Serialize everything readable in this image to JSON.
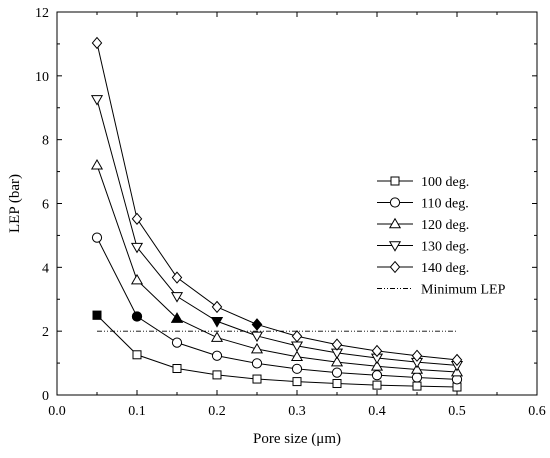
{
  "chart_data": {
    "type": "line",
    "xlabel": "Pore size (μm)",
    "ylabel": "LEP (bar)",
    "xlim": [
      0.0,
      0.6
    ],
    "ylim": [
      0,
      12
    ],
    "x_ticks": [
      "0.0",
      "0.1",
      "0.2",
      "0.3",
      "0.4",
      "0.5",
      "0.6"
    ],
    "y_ticks": [
      "0",
      "2",
      "4",
      "6",
      "8",
      "10",
      "12"
    ],
    "x": [
      0.05,
      0.1,
      0.15,
      0.2,
      0.25,
      0.3,
      0.35,
      0.4,
      0.45,
      0.5
    ],
    "grid": false,
    "legend_position": "right",
    "series": [
      {
        "name": "100 deg.",
        "marker": "square",
        "values": [
          2.5,
          1.26,
          0.83,
          0.63,
          0.5,
          0.42,
          0.36,
          0.31,
          0.28,
          0.25
        ]
      },
      {
        "name": "110 deg.",
        "marker": "circle",
        "values": [
          4.93,
          2.46,
          1.64,
          1.23,
          0.99,
          0.82,
          0.7,
          0.62,
          0.55,
          0.49
        ]
      },
      {
        "name": "120 deg.",
        "marker": "triangle-up",
        "values": [
          7.2,
          3.6,
          2.4,
          1.8,
          1.44,
          1.2,
          1.03,
          0.9,
          0.8,
          0.72
        ]
      },
      {
        "name": "130 deg.",
        "marker": "triangle-down",
        "values": [
          9.26,
          4.63,
          3.09,
          2.31,
          1.85,
          1.54,
          1.32,
          1.16,
          1.03,
          0.93
        ]
      },
      {
        "name": "140 deg.",
        "marker": "diamond",
        "values": [
          11.03,
          5.52,
          3.68,
          2.76,
          2.21,
          1.84,
          1.58,
          1.38,
          1.23,
          1.1
        ]
      }
    ],
    "reference_line": {
      "name": "Minimum LEP",
      "y": 2.0,
      "x_range": [
        0.05,
        0.5
      ]
    },
    "highlighted_points": [
      {
        "marker": "square",
        "x": 0.05,
        "y": 2.5
      },
      {
        "marker": "circle",
        "x": 0.1,
        "y": 2.46
      },
      {
        "marker": "triangle-up",
        "x": 0.15,
        "y": 2.4
      },
      {
        "marker": "triangle-down",
        "x": 0.2,
        "y": 2.31
      },
      {
        "marker": "diamond",
        "x": 0.25,
        "y": 2.21
      }
    ]
  }
}
